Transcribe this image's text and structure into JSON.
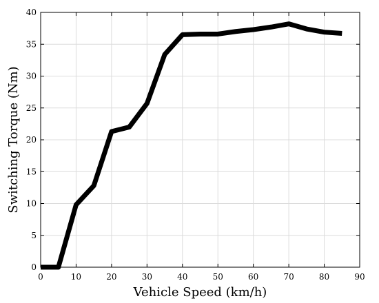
{
  "chart_data": {
    "type": "line",
    "title": "",
    "xlabel": "Vehicle Speed (km/h)",
    "ylabel": "Switching Torque (Nm)",
    "xlim": [
      0,
      90
    ],
    "ylim": [
      0,
      40
    ],
    "xticks": [
      0,
      10,
      20,
      30,
      40,
      50,
      60,
      70,
      80,
      90
    ],
    "yticks": [
      0,
      5,
      10,
      15,
      20,
      25,
      30,
      35,
      40
    ],
    "grid": true,
    "series": [
      {
        "color": "#000000",
        "x": [
          0,
          5,
          10,
          15,
          20,
          25,
          30,
          35,
          40,
          45,
          50,
          55,
          60,
          65,
          70,
          75,
          80,
          85
        ],
        "y": [
          0,
          0,
          9.8,
          12.8,
          21.3,
          22.0,
          25.7,
          33.4,
          36.5,
          36.6,
          36.6,
          37.0,
          37.3,
          37.7,
          38.2,
          37.4,
          36.9,
          36.7
        ]
      }
    ]
  }
}
